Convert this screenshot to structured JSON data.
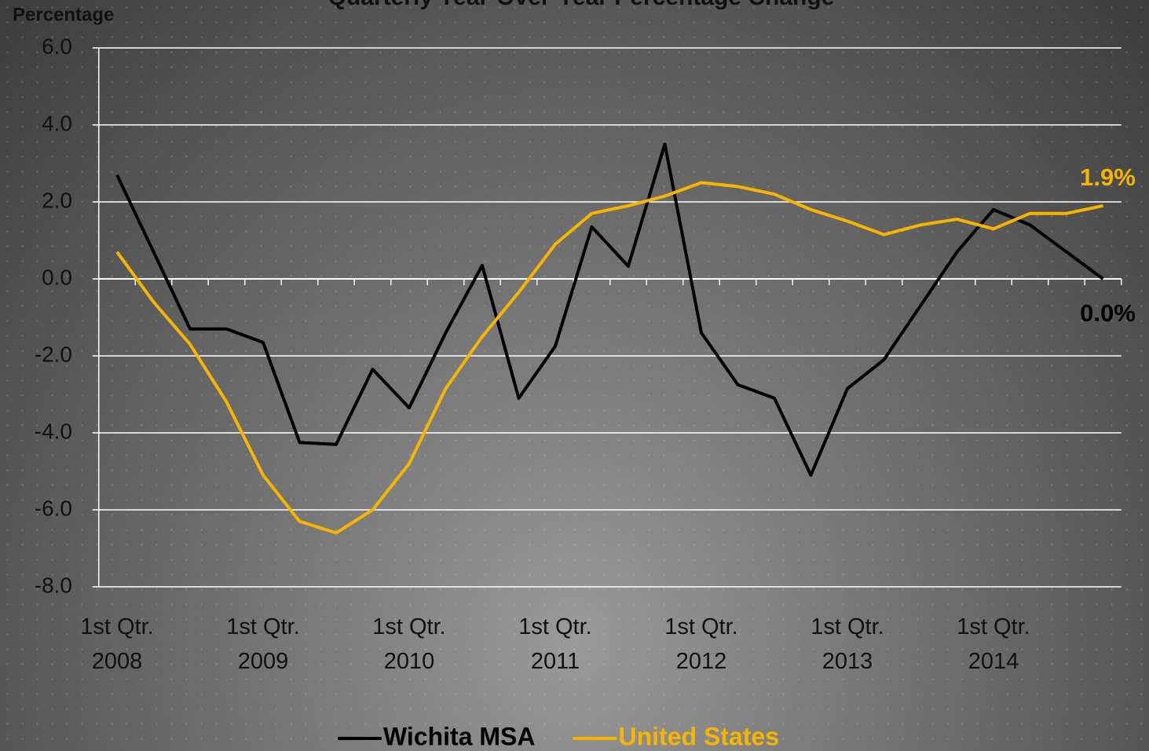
{
  "chart_data": {
    "type": "line",
    "title": "Quarterly Year-Over-Year Percentage Change",
    "y_label": "Percentage",
    "categories": [
      "1st Qtr.\n2008",
      null,
      null,
      null,
      "1st Qtr.\n2009",
      null,
      null,
      null,
      "1st Qtr.\n2010",
      null,
      null,
      null,
      "1st Qtr.\n2011",
      null,
      null,
      null,
      "1st Qtr.\n2012",
      null,
      null,
      null,
      "1st Qtr.\n2013",
      null,
      null,
      null,
      "1st Qtr.\n2014",
      null,
      null,
      null
    ],
    "series": [
      {
        "name": "Wichita MSA",
        "color": "#000000",
        "values": [
          2.7,
          0.7,
          -1.3,
          -1.3,
          -1.65,
          -4.25,
          -4.3,
          -2.35,
          -3.35,
          -1.4,
          0.35,
          -3.1,
          -1.75,
          1.35,
          0.33,
          3.5,
          -1.4,
          -2.75,
          -3.1,
          -5.1,
          -2.85,
          -2.1,
          -0.7,
          0.7,
          1.8,
          1.4,
          0.7,
          0.0
        ],
        "value_labels": [
          null,
          null,
          null,
          null,
          null,
          null,
          null,
          null,
          null,
          null,
          null,
          null,
          null,
          null,
          null,
          null,
          null,
          null,
          null,
          null,
          null,
          null,
          null,
          null,
          null,
          null,
          null,
          "0.0%"
        ]
      },
      {
        "name": "United States",
        "color": "#f7b500",
        "values": [
          0.7,
          -0.6,
          -1.7,
          -3.2,
          -5.1,
          -6.3,
          -6.6,
          -6.0,
          -4.8,
          -2.85,
          -1.5,
          -0.35,
          0.9,
          1.7,
          1.9,
          2.15,
          2.5,
          2.4,
          2.2,
          1.8,
          1.5,
          1.15,
          1.4,
          1.55,
          1.3,
          1.7,
          1.7,
          1.9
        ],
        "value_labels": [
          null,
          null,
          null,
          null,
          null,
          null,
          null,
          null,
          null,
          null,
          null,
          null,
          null,
          null,
          null,
          null,
          null,
          null,
          null,
          null,
          null,
          null,
          null,
          null,
          null,
          null,
          null,
          "1.9%"
        ]
      }
    ],
    "ylim": [
      -8,
      6
    ],
    "yticks": [
      {
        "value": -8,
        "label": "-8.0"
      },
      {
        "value": -6,
        "label": "-6.0"
      },
      {
        "value": -4,
        "label": "-4.0"
      },
      {
        "value": -2,
        "label": "-2.0"
      },
      {
        "value": 0,
        "label": "0.0"
      },
      {
        "value": 2,
        "label": "2.0"
      },
      {
        "value": 4,
        "label": "4.0"
      },
      {
        "value": 6,
        "label": "6.0"
      }
    ],
    "grid": true,
    "legend": "bottom"
  }
}
